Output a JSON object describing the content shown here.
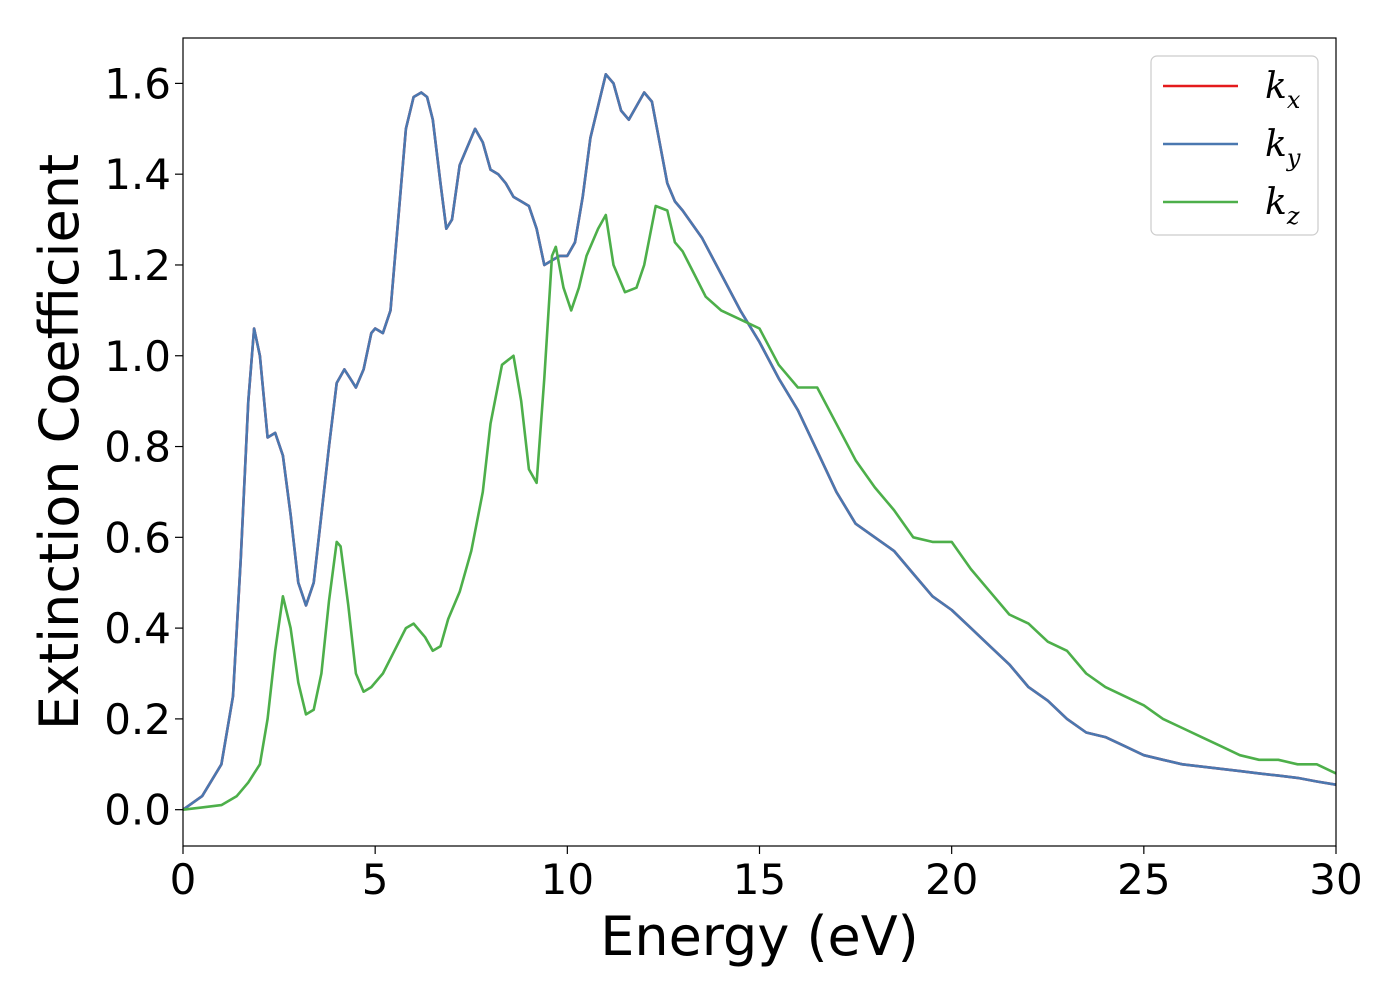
{
  "chart_data": {
    "type": "line",
    "title": "",
    "xlabel": "Energy (eV)",
    "ylabel": "Extinction Coefficient",
    "xlim": [
      0,
      30
    ],
    "ylim": [
      -0.08,
      1.7
    ],
    "xticks": [
      0,
      5,
      10,
      15,
      20,
      25,
      30
    ],
    "yticks": [
      0.0,
      0.2,
      0.4,
      0.6,
      0.8,
      1.0,
      1.2,
      1.4,
      1.6
    ],
    "grid": false,
    "legend_position": "top-right",
    "colors": {
      "kx": "#e41a1c",
      "ky": "#4a78b0",
      "kz": "#4daf4a"
    },
    "series": [
      {
        "name": "kx",
        "legend_main": "k",
        "legend_sub": "x",
        "color": "#e41a1c",
        "x": [
          0,
          0.5,
          1.0,
          1.3,
          1.5,
          1.7,
          1.85,
          2.0,
          2.2,
          2.4,
          2.6,
          2.8,
          3.0,
          3.2,
          3.4,
          3.6,
          3.8,
          4.0,
          4.2,
          4.35,
          4.5,
          4.7,
          4.9,
          5.0,
          5.2,
          5.4,
          5.6,
          5.8,
          6.0,
          6.2,
          6.35,
          6.5,
          6.7,
          6.85,
          7.0,
          7.2,
          7.4,
          7.6,
          7.8,
          8.0,
          8.2,
          8.4,
          8.6,
          8.8,
          9.0,
          9.2,
          9.4,
          9.6,
          9.8,
          10.0,
          10.2,
          10.4,
          10.6,
          10.8,
          11.0,
          11.2,
          11.4,
          11.6,
          11.8,
          12.0,
          12.2,
          12.4,
          12.6,
          12.8,
          13.0,
          13.5,
          14.0,
          14.5,
          15.0,
          15.5,
          16.0,
          16.5,
          17.0,
          17.5,
          18.0,
          18.5,
          19.0,
          19.5,
          20.0,
          20.5,
          21.0,
          21.5,
          22.0,
          22.5,
          23.0,
          23.5,
          24.0,
          24.5,
          25.0,
          25.5,
          26.0,
          26.5,
          27.0,
          27.5,
          28.0,
          28.5,
          29.0,
          29.5,
          30.0
        ],
        "y": [
          0.0,
          0.03,
          0.1,
          0.25,
          0.55,
          0.9,
          1.06,
          1.0,
          0.82,
          0.83,
          0.78,
          0.65,
          0.5,
          0.45,
          0.5,
          0.65,
          0.8,
          0.94,
          0.97,
          0.95,
          0.93,
          0.97,
          1.05,
          1.06,
          1.05,
          1.1,
          1.3,
          1.5,
          1.57,
          1.58,
          1.57,
          1.52,
          1.38,
          1.28,
          1.3,
          1.42,
          1.46,
          1.5,
          1.47,
          1.41,
          1.4,
          1.38,
          1.35,
          1.34,
          1.33,
          1.28,
          1.2,
          1.21,
          1.22,
          1.22,
          1.25,
          1.35,
          1.48,
          1.55,
          1.62,
          1.6,
          1.54,
          1.52,
          1.55,
          1.58,
          1.56,
          1.47,
          1.38,
          1.34,
          1.32,
          1.26,
          1.18,
          1.1,
          1.03,
          0.95,
          0.88,
          0.79,
          0.7,
          0.63,
          0.6,
          0.57,
          0.52,
          0.47,
          0.44,
          0.4,
          0.36,
          0.32,
          0.27,
          0.24,
          0.2,
          0.17,
          0.16,
          0.14,
          0.12,
          0.11,
          0.1,
          0.095,
          0.09,
          0.085,
          0.08,
          0.075,
          0.07,
          0.062,
          0.055
        ]
      },
      {
        "name": "ky",
        "legend_main": "k",
        "legend_sub": "y",
        "color": "#4a78b0",
        "x": [
          0,
          0.5,
          1.0,
          1.3,
          1.5,
          1.7,
          1.85,
          2.0,
          2.2,
          2.4,
          2.6,
          2.8,
          3.0,
          3.2,
          3.4,
          3.6,
          3.8,
          4.0,
          4.2,
          4.35,
          4.5,
          4.7,
          4.9,
          5.0,
          5.2,
          5.4,
          5.6,
          5.8,
          6.0,
          6.2,
          6.35,
          6.5,
          6.7,
          6.85,
          7.0,
          7.2,
          7.4,
          7.6,
          7.8,
          8.0,
          8.2,
          8.4,
          8.6,
          8.8,
          9.0,
          9.2,
          9.4,
          9.6,
          9.8,
          10.0,
          10.2,
          10.4,
          10.6,
          10.8,
          11.0,
          11.2,
          11.4,
          11.6,
          11.8,
          12.0,
          12.2,
          12.4,
          12.6,
          12.8,
          13.0,
          13.5,
          14.0,
          14.5,
          15.0,
          15.5,
          16.0,
          16.5,
          17.0,
          17.5,
          18.0,
          18.5,
          19.0,
          19.5,
          20.0,
          20.5,
          21.0,
          21.5,
          22.0,
          22.5,
          23.0,
          23.5,
          24.0,
          24.5,
          25.0,
          25.5,
          26.0,
          26.5,
          27.0,
          27.5,
          28.0,
          28.5,
          29.0,
          29.5,
          30.0
        ],
        "y": [
          0.0,
          0.03,
          0.1,
          0.25,
          0.55,
          0.9,
          1.06,
          1.0,
          0.82,
          0.83,
          0.78,
          0.65,
          0.5,
          0.45,
          0.5,
          0.65,
          0.8,
          0.94,
          0.97,
          0.95,
          0.93,
          0.97,
          1.05,
          1.06,
          1.05,
          1.1,
          1.3,
          1.5,
          1.57,
          1.58,
          1.57,
          1.52,
          1.38,
          1.28,
          1.3,
          1.42,
          1.46,
          1.5,
          1.47,
          1.41,
          1.4,
          1.38,
          1.35,
          1.34,
          1.33,
          1.28,
          1.2,
          1.21,
          1.22,
          1.22,
          1.25,
          1.35,
          1.48,
          1.55,
          1.62,
          1.6,
          1.54,
          1.52,
          1.55,
          1.58,
          1.56,
          1.47,
          1.38,
          1.34,
          1.32,
          1.26,
          1.18,
          1.1,
          1.03,
          0.95,
          0.88,
          0.79,
          0.7,
          0.63,
          0.6,
          0.57,
          0.52,
          0.47,
          0.44,
          0.4,
          0.36,
          0.32,
          0.27,
          0.24,
          0.2,
          0.17,
          0.16,
          0.14,
          0.12,
          0.11,
          0.1,
          0.095,
          0.09,
          0.085,
          0.08,
          0.075,
          0.07,
          0.062,
          0.055
        ]
      },
      {
        "name": "kz",
        "legend_main": "k",
        "legend_sub": "z",
        "color": "#4daf4a",
        "x": [
          0,
          0.5,
          1.0,
          1.4,
          1.7,
          2.0,
          2.2,
          2.4,
          2.6,
          2.8,
          3.0,
          3.2,
          3.4,
          3.6,
          3.8,
          4.0,
          4.1,
          4.3,
          4.5,
          4.7,
          4.9,
          5.2,
          5.5,
          5.8,
          6.0,
          6.3,
          6.5,
          6.7,
          6.9,
          7.2,
          7.5,
          7.8,
          8.0,
          8.3,
          8.6,
          8.8,
          9.0,
          9.2,
          9.4,
          9.6,
          9.7,
          9.9,
          10.1,
          10.3,
          10.5,
          10.8,
          11.0,
          11.2,
          11.5,
          11.8,
          12.0,
          12.3,
          12.6,
          12.8,
          13.0,
          13.3,
          13.6,
          14.0,
          14.5,
          15.0,
          15.5,
          16.0,
          16.5,
          17.0,
          17.5,
          18.0,
          18.5,
          19.0,
          19.5,
          20.0,
          20.5,
          21.0,
          21.5,
          22.0,
          22.5,
          23.0,
          23.5,
          24.0,
          24.5,
          25.0,
          25.5,
          26.0,
          26.5,
          27.0,
          27.5,
          28.0,
          28.5,
          29.0,
          29.5,
          30.0
        ],
        "y": [
          0.0,
          0.005,
          0.01,
          0.03,
          0.06,
          0.1,
          0.2,
          0.35,
          0.47,
          0.4,
          0.28,
          0.21,
          0.22,
          0.3,
          0.46,
          0.59,
          0.58,
          0.45,
          0.3,
          0.26,
          0.27,
          0.3,
          0.35,
          0.4,
          0.41,
          0.38,
          0.35,
          0.36,
          0.42,
          0.48,
          0.57,
          0.7,
          0.85,
          0.98,
          1.0,
          0.9,
          0.75,
          0.72,
          0.95,
          1.22,
          1.24,
          1.15,
          1.1,
          1.15,
          1.22,
          1.28,
          1.31,
          1.2,
          1.14,
          1.15,
          1.2,
          1.33,
          1.32,
          1.25,
          1.23,
          1.18,
          1.13,
          1.1,
          1.08,
          1.06,
          0.98,
          0.93,
          0.93,
          0.85,
          0.77,
          0.71,
          0.66,
          0.6,
          0.59,
          0.59,
          0.53,
          0.48,
          0.43,
          0.41,
          0.37,
          0.35,
          0.3,
          0.27,
          0.25,
          0.23,
          0.2,
          0.18,
          0.16,
          0.14,
          0.12,
          0.11,
          0.11,
          0.1,
          0.1,
          0.08
        ]
      }
    ]
  }
}
